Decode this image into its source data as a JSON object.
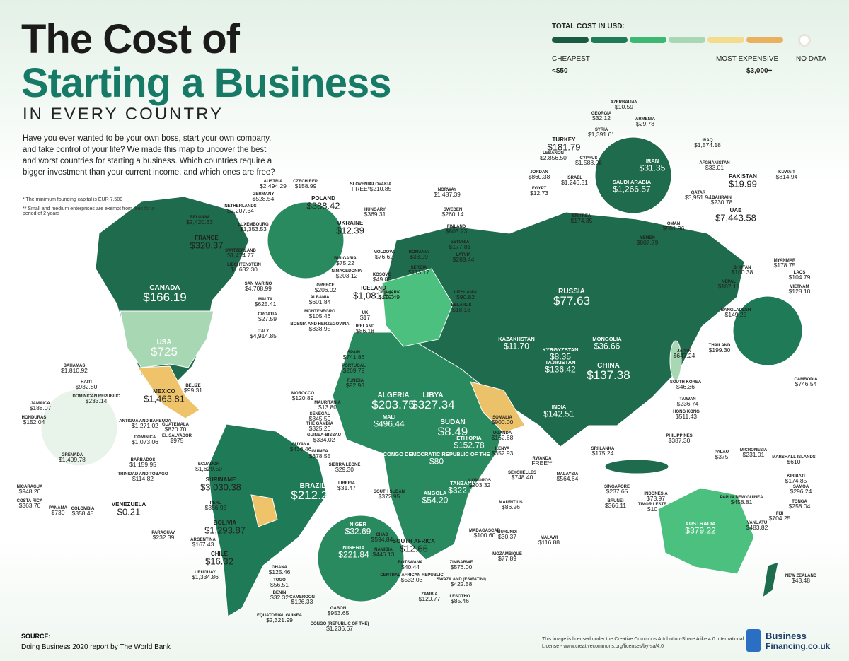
{
  "header": {
    "title_line1": "The Cost of",
    "title_line2": "Starting a Business",
    "subtitle": "IN EVERY COUNTRY",
    "intro": "Have you ever wanted to be your own boss, start your own company, and take control of your life? We made this map to uncover the best and worst countries for starting a business. Which countries require a bigger investment than your current income, and which ones are free?",
    "notes": [
      "* The minimum founding capital is EUR 7,500",
      "** Small and medium enterprises are exempt from fees for a period of 2 years"
    ]
  },
  "legend": {
    "title": "TOTAL COST IN USD:",
    "cheapest": "CHEAPEST",
    "cheapest_value": "<$50",
    "most_expensive": "MOST EXPENSIVE",
    "most_expensive_value": "$3,000+",
    "no_data": "NO DATA"
  },
  "countries": [
    {
      "name": "AUSTRIA",
      "value": "$2,494.29"
    },
    {
      "name": "CZECH REP.",
      "value": "$158.99"
    },
    {
      "name": "GERMANY",
      "value": "$528.54"
    },
    {
      "name": "NETHERLANDS",
      "value": "$2,207.34"
    },
    {
      "name": "POLAND",
      "value": "$388.42"
    },
    {
      "name": "BELGIUM",
      "value": "$2,420.63"
    },
    {
      "name": "LUXEMBOURG",
      "value": "$1,353.53"
    },
    {
      "name": "SLOVAKIA",
      "value": "$210.85"
    },
    {
      "name": "HUNGARY",
      "value": "$369.31"
    },
    {
      "name": "UKRAINE",
      "value": "$12.39"
    },
    {
      "name": "FRANCE",
      "value": "$320.37"
    },
    {
      "name": "MOLDOVA",
      "value": "$76.62"
    },
    {
      "name": "ROMANIA",
      "value": "$38.09"
    },
    {
      "name": "SWITZERLAND",
      "value": "$1,474.77"
    },
    {
      "name": "SERBIA",
      "value": "$113.17"
    },
    {
      "name": "KOSOVO",
      "value": "$49.05"
    },
    {
      "name": "LIECHTENSTEIN",
      "value": "$1,632.30"
    },
    {
      "name": "BULGARIA",
      "value": "$75.22"
    },
    {
      "name": "N.MACEDONIA",
      "value": "$203.12"
    },
    {
      "name": "GREECE",
      "value": "$206.02"
    },
    {
      "name": "SAN MARINO",
      "value": "$4,708.99"
    },
    {
      "name": "MALTA",
      "value": "$625.41"
    },
    {
      "name": "ALBANIA",
      "value": "$601.84"
    },
    {
      "name": "CROATIA",
      "value": "$27.59"
    },
    {
      "name": "MONTENEGRO",
      "value": "$105.46"
    },
    {
      "name": "BOSNIA AND HERZEGOVINA",
      "value": "$838.95"
    },
    {
      "name": "ITALY",
      "value": "$4,914.85"
    },
    {
      "name": "SLOVENIA",
      "value": "FREE*"
    },
    {
      "name": "NORWAY",
      "value": "$1,487.39"
    },
    {
      "name": "SWEDEN",
      "value": "$260.14"
    },
    {
      "name": "FINLAND",
      "value": "$803.23"
    },
    {
      "name": "ESTONIA",
      "value": "$177.81"
    },
    {
      "name": "LATVIA",
      "value": "$289.44"
    },
    {
      "name": "ICELAND",
      "value": "$1,081.53"
    },
    {
      "name": "DENMARK",
      "value": "$110.49"
    },
    {
      "name": "LITHUANIA",
      "value": "$90.82"
    },
    {
      "name": "BELARUS",
      "value": "$18.18"
    },
    {
      "name": "UK",
      "value": "$17"
    },
    {
      "name": "IRELAND",
      "value": "$86.18"
    },
    {
      "name": "CANADA",
      "value": "$166.19"
    },
    {
      "name": "USA",
      "value": "$725"
    },
    {
      "name": "RUSSIA",
      "value": "$77.63"
    },
    {
      "name": "KAZAKHSTAN",
      "value": "$11.70"
    },
    {
      "name": "MONGOLIA",
      "value": "$36.66"
    },
    {
      "name": "KYRGYZSTAN",
      "value": "$8.35"
    },
    {
      "name": "TAJIKISTAN",
      "value": "$136.42"
    },
    {
      "name": "CHINA",
      "value": "$137.38"
    },
    {
      "name": "INDIA",
      "value": "$142.51"
    },
    {
      "name": "SPAIN",
      "value": "$741.86"
    },
    {
      "name": "PORTUGAL",
      "value": "$269.79"
    },
    {
      "name": "TUNISIA",
      "value": "$92.93"
    },
    {
      "name": "ALGERIA",
      "value": "$203.75"
    },
    {
      "name": "LIBYA",
      "value": "$327.34"
    },
    {
      "name": "MOROCCO",
      "value": "$120.89"
    },
    {
      "name": "MAURITANIA",
      "value": "$13.80"
    },
    {
      "name": "SENEGAL",
      "value": "$345.59"
    },
    {
      "name": "THE GAMBIA",
      "value": "$325.20"
    },
    {
      "name": "MALI",
      "value": "$496.44"
    },
    {
      "name": "GUINEA-BISSAU",
      "value": "$334.02"
    },
    {
      "name": "GUINEA",
      "value": "$378.55"
    },
    {
      "name": "SIERRA LEONE",
      "value": "$29.30"
    },
    {
      "name": "LIBERIA",
      "value": "$31.47"
    },
    {
      "name": "SUDAN",
      "value": "$8.49"
    },
    {
      "name": "ETHIOPIA",
      "value": "$152.78"
    },
    {
      "name": "SOMALIA",
      "value": "$900.00"
    },
    {
      "name": "UGANDA",
      "value": "$162.68"
    },
    {
      "name": "KENYA",
      "value": "$352.93"
    },
    {
      "name": "CONGO DEMOCRATIC REPUBLIC OF THE",
      "value": "$80"
    },
    {
      "name": "RWANDA",
      "value": "FREE**"
    },
    {
      "name": "SOUTH SUDAN",
      "value": "$372.95"
    },
    {
      "name": "ANGOLA",
      "value": "$54.20"
    },
    {
      "name": "TANZANIA",
      "value": "$322.46"
    },
    {
      "name": "SEYCHELLES",
      "value": "$748.40"
    },
    {
      "name": "COMOROS",
      "value": "$203.32"
    },
    {
      "name": "MAURITIUS",
      "value": "$86.26"
    },
    {
      "name": "MADAGASCAR",
      "value": "$100.60"
    },
    {
      "name": "CHAD",
      "value": "$594.84"
    },
    {
      "name": "NAMIBIA",
      "value": "$446.13"
    },
    {
      "name": "SOUTH AFRICA",
      "value": "$12.66"
    },
    {
      "name": "BURUNDI",
      "value": "$30.37"
    },
    {
      "name": "MALAWI",
      "value": "$116.88"
    },
    {
      "name": "MOZAMBIQUE",
      "value": "$77.89"
    },
    {
      "name": "BOTSWANA",
      "value": "$40.44"
    },
    {
      "name": "ZIMBABWE",
      "value": "$576.00"
    },
    {
      "name": "CENTRAL AFRICAN REPUBLIC",
      "value": "$532.03"
    },
    {
      "name": "SWAZILAND (ESWATINI)",
      "value": "$422.58"
    },
    {
      "name": "ZAMBIA",
      "value": "$120.77"
    },
    {
      "name": "LESOTHO",
      "value": "$85.46"
    },
    {
      "name": "NIGER",
      "value": "$32.69"
    },
    {
      "name": "NIGERIA",
      "value": "$221.84"
    },
    {
      "name": "GHANA",
      "value": "$125.46"
    },
    {
      "name": "TOGO",
      "value": "$56.51"
    },
    {
      "name": "BENIN",
      "value": "$32.32"
    },
    {
      "name": "CAMEROON",
      "value": "$126.33"
    },
    {
      "name": "EQUATORIAL GUINEA",
      "value": "$2,321.99"
    },
    {
      "name": "GABON",
      "value": "$953.65"
    },
    {
      "name": "CONGO (REPUBLIC OF THE)",
      "value": "$1,236.67"
    },
    {
      "name": "MEXICO",
      "value": "$1,463.81"
    },
    {
      "name": "BELIZE",
      "value": "$99.31"
    },
    {
      "name": "HAITI",
      "value": "$932.80"
    },
    {
      "name": "BAHAMAS",
      "value": "$1,810.92"
    },
    {
      "name": "DOMINICAN REPUBLIC",
      "value": "$233.14"
    },
    {
      "name": "JAMAICA",
      "value": "$188.07"
    },
    {
      "name": "HONDURAS",
      "value": "$152.04"
    },
    {
      "name": "ANTIGUA AND BARBUDA",
      "value": "$1,271.02"
    },
    {
      "name": "DOMINICA",
      "value": "$1,073.06"
    },
    {
      "name": "GUATEMALA",
      "value": "$820.70"
    },
    {
      "name": "EL SALVADOR",
      "value": "$975"
    },
    {
      "name": "GRENADA",
      "value": "$1,409.78"
    },
    {
      "name": "BARBADOS",
      "value": "$1,159.95"
    },
    {
      "name": "TRINIDAD AND TOBAGO",
      "value": "$114.82"
    },
    {
      "name": "NICARAGUA",
      "value": "$948.20"
    },
    {
      "name": "COSTA RICA",
      "value": "$363.70"
    },
    {
      "name": "PANAMA",
      "value": "$730"
    },
    {
      "name": "COLOMBIA",
      "value": "$358.48"
    },
    {
      "name": "VENEZUELA",
      "value": "$0.21"
    },
    {
      "name": "GUYANA",
      "value": "$436.46"
    },
    {
      "name": "ECUADOR",
      "value": "$1,629.50"
    },
    {
      "name": "SURINAME",
      "value": "$3,030.38"
    },
    {
      "name": "BRAZIL",
      "value": "$212.27"
    },
    {
      "name": "PERU",
      "value": "$356.93"
    },
    {
      "name": "BOLIVIA",
      "value": "$1,293.87"
    },
    {
      "name": "PARAGUAY",
      "value": "$232.39"
    },
    {
      "name": "ARGENTINA",
      "value": "$167.43"
    },
    {
      "name": "CHILE",
      "value": "$16.32"
    },
    {
      "name": "URUGUAY",
      "value": "$1,334.86"
    },
    {
      "name": "AZERBAIJAN",
      "value": "$10.59"
    },
    {
      "name": "GEORGIA",
      "value": "$32.12"
    },
    {
      "name": "ARMENIA",
      "value": "$29.78"
    },
    {
      "name": "SYRIA",
      "value": "$1,391.61"
    },
    {
      "name": "IRAQ",
      "value": "$1,574.18"
    },
    {
      "name": "TURKEY",
      "value": "$181.79"
    },
    {
      "name": "LEBANON",
      "value": "$2,856.50"
    },
    {
      "name": "CYPRUS",
      "value": "$1,588.06"
    },
    {
      "name": "IRAN",
      "value": "$31.35"
    },
    {
      "name": "AFGHANISTAN",
      "value": "$33.01"
    },
    {
      "name": "JORDAN",
      "value": "$860.38"
    },
    {
      "name": "ISRAEL",
      "value": "$1,246.31"
    },
    {
      "name": "SAUDI ARABIA",
      "value": "$1,266.57"
    },
    {
      "name": "KUWAIT",
      "value": "$814.94"
    },
    {
      "name": "PAKISTAN",
      "value": "$19.99"
    },
    {
      "name": "EGYPT",
      "value": "$12.73"
    },
    {
      "name": "QATAR",
      "value": "$3,951.94"
    },
    {
      "name": "BAHRAIN",
      "value": "$230.78"
    },
    {
      "name": "ERITREA",
      "value": "$174.35"
    },
    {
      "name": "UAE",
      "value": "$7,443.58"
    },
    {
      "name": "OMAN",
      "value": "$501.96"
    },
    {
      "name": "YEMEN",
      "value": "$807.79"
    },
    {
      "name": "BHUTAN",
      "value": "$100.38"
    },
    {
      "name": "MYANMAR",
      "value": "$178.75"
    },
    {
      "name": "NEPAL",
      "value": "$187.18"
    },
    {
      "name": "LAOS",
      "value": "$104.79"
    },
    {
      "name": "VIETNAM",
      "value": "$128.10"
    },
    {
      "name": "BANGLADESH",
      "value": "$149.25"
    },
    {
      "name": "THAILAND",
      "value": "$199.30"
    },
    {
      "name": "JAPAN",
      "value": "$647.24"
    },
    {
      "name": "CAMBODIA",
      "value": "$746.54"
    },
    {
      "name": "SOUTH KOREA",
      "value": "$46.36"
    },
    {
      "name": "TAIWAN",
      "value": "$236.74"
    },
    {
      "name": "HONG KONG",
      "value": "$511.43"
    },
    {
      "name": "PHILIPPINES",
      "value": "$387.30"
    },
    {
      "name": "SRI LANKA",
      "value": "$175.24"
    },
    {
      "name": "MICRONESIA",
      "value": "$231.01"
    },
    {
      "name": "PALAU",
      "value": "$375"
    },
    {
      "name": "MARSHALL ISLANDS",
      "value": "$610"
    },
    {
      "name": "MALAYSIA",
      "value": "$564.64"
    },
    {
      "name": "KIRIBATI",
      "value": "$174.85"
    },
    {
      "name": "SINGAPORE",
      "value": "$237.65"
    },
    {
      "name": "INDONESIA",
      "value": "$73.97"
    },
    {
      "name": "PAPUA NEW GUINEA",
      "value": "$458.81"
    },
    {
      "name": "SAMOA",
      "value": "$296.24"
    },
    {
      "name": "BRUNEI",
      "value": "$366.11"
    },
    {
      "name": "TIMOR LESTE",
      "value": "$10"
    },
    {
      "name": "AUSTRALIA",
      "value": "$379.22"
    },
    {
      "name": "TONGA",
      "value": "$258.04"
    },
    {
      "name": "FIJI",
      "value": "$704.25"
    },
    {
      "name": "VANUATU",
      "value": "$483.82"
    },
    {
      "name": "NEW ZEALAND",
      "value": "$43.48"
    }
  ],
  "source": {
    "label": "SOURCE:",
    "text": "Doing Business 2020 report by The World Bank"
  },
  "license": "This image is licensed under the Creative Commons Attribution-Share Alike 4.0 International License - www.creativecommons.org/licenses/by-sa/4.0",
  "logo": {
    "line1": "Business",
    "line2": "Financing.co.uk"
  }
}
